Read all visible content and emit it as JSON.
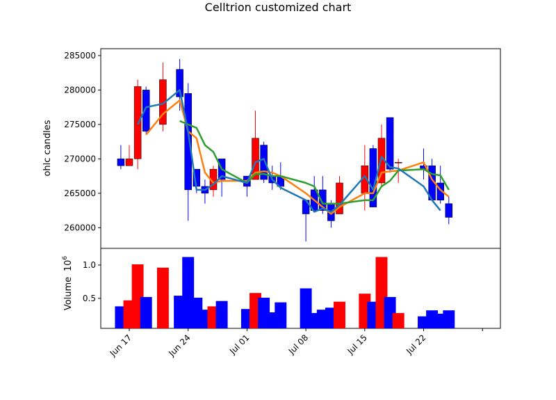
{
  "chart_data": {
    "type": "candlestick",
    "title": "Celltrion customized chart",
    "price_panel": {
      "ylabel": "ohlc candles",
      "ylim": [
        257000,
        286000
      ],
      "yticks": [
        260000,
        265000,
        270000,
        275000,
        280000,
        285000
      ],
      "ytick_labels": [
        "260000",
        "265000",
        "270000",
        "275000",
        "280000",
        "285000"
      ]
    },
    "volume_panel": {
      "ylabel": "Volume",
      "ylabel_exponent": "10^6",
      "ylim": [
        0.05,
        1.25
      ],
      "yticks": [
        0.5,
        1.0
      ],
      "ytick_labels": [
        "0.5",
        "1.0"
      ]
    },
    "x": {
      "start_date": "2019-06-17",
      "tick_labels": [
        "Jun 17",
        "Jun 24",
        "Jul 01",
        "Jul 08",
        "Jul 15",
        "Jul 22",
        ""
      ],
      "tick_dates": [
        "2019-06-17",
        "2019-06-24",
        "2019-07-01",
        "2019-07-08",
        "2019-07-15",
        "2019-07-22",
        "2019-07-29"
      ]
    },
    "colors": {
      "up": "#ff0000",
      "down": "#0000ff",
      "ma5": "#ff7f0e",
      "ma10": "#2ca02c",
      "ma3": "#1f77b4"
    },
    "candles": [
      {
        "date": "2019-06-16",
        "open": 270000,
        "high": 272000,
        "low": 268500,
        "close": 269000,
        "volume": 0.38
      },
      {
        "date": "2019-06-17",
        "open": 269000,
        "high": 272000,
        "low": 269000,
        "close": 270000,
        "volume": 0.47
      },
      {
        "date": "2019-06-18",
        "open": 270000,
        "high": 281500,
        "low": 268500,
        "close": 280500,
        "volume": 1.01
      },
      {
        "date": "2019-06-19",
        "open": 280000,
        "high": 280500,
        "low": 273500,
        "close": 274000,
        "volume": 0.52
      },
      {
        "date": "2019-06-21",
        "open": 275000,
        "high": 284000,
        "low": 274000,
        "close": 281500,
        "volume": 0.96
      },
      {
        "date": "2019-06-23",
        "open": 283000,
        "high": 284500,
        "low": 277000,
        "close": 279000,
        "volume": 0.54
      },
      {
        "date": "2019-06-24",
        "open": 279500,
        "high": 281000,
        "low": 261000,
        "close": 265500,
        "volume": 1.12
      },
      {
        "date": "2019-06-25",
        "open": 268500,
        "high": 268500,
        "low": 265000,
        "close": 266000,
        "volume": 0.51
      },
      {
        "date": "2019-06-26",
        "open": 266000,
        "high": 267000,
        "low": 263500,
        "close": 265000,
        "volume": 0.33
      },
      {
        "date": "2019-06-27",
        "open": 265500,
        "high": 269000,
        "low": 264500,
        "close": 268500,
        "volume": 0.38
      },
      {
        "date": "2019-06-28",
        "open": 270000,
        "high": 270000,
        "low": 264500,
        "close": 267000,
        "volume": 0.46
      },
      {
        "date": "2019-07-01",
        "open": 267500,
        "high": 267500,
        "low": 264500,
        "close": 266000,
        "volume": 0.34
      },
      {
        "date": "2019-07-02",
        "open": 267000,
        "high": 277000,
        "low": 267000,
        "close": 273000,
        "volume": 0.58
      },
      {
        "date": "2019-07-03",
        "open": 272000,
        "high": 272500,
        "low": 266500,
        "close": 267000,
        "volume": 0.51
      },
      {
        "date": "2019-07-04",
        "open": 267500,
        "high": 269000,
        "low": 265500,
        "close": 266500,
        "volume": 0.29
      },
      {
        "date": "2019-07-05",
        "open": 267500,
        "high": 269500,
        "low": 265500,
        "close": 266000,
        "volume": 0.44
      },
      {
        "date": "2019-07-08",
        "open": 264000,
        "high": 264000,
        "low": 258000,
        "close": 262000,
        "volume": 0.65
      },
      {
        "date": "2019-07-09",
        "open": 265500,
        "high": 267500,
        "low": 262500,
        "close": 262500,
        "volume": 0.28
      },
      {
        "date": "2019-07-10",
        "open": 265500,
        "high": 267500,
        "low": 262000,
        "close": 262500,
        "volume": 0.33
      },
      {
        "date": "2019-07-11",
        "open": 263500,
        "high": 264000,
        "low": 260000,
        "close": 261000,
        "volume": 0.36
      },
      {
        "date": "2019-07-12",
        "open": 262000,
        "high": 267500,
        "low": 262000,
        "close": 266500,
        "volume": 0.45
      },
      {
        "date": "2019-07-15",
        "open": 265000,
        "high": 272000,
        "low": 262500,
        "close": 269000,
        "volume": 0.57
      },
      {
        "date": "2019-07-16",
        "open": 271500,
        "high": 272000,
        "low": 263000,
        "close": 263000,
        "volume": 0.45
      },
      {
        "date": "2019-07-17",
        "open": 266500,
        "high": 275000,
        "low": 266000,
        "close": 273000,
        "volume": 1.12
      },
      {
        "date": "2019-07-18",
        "open": 276000,
        "high": 276000,
        "low": 268000,
        "close": 268500,
        "volume": 0.52
      },
      {
        "date": "2019-07-19",
        "open": 269500,
        "high": 270000,
        "low": 266500,
        "close": 269500,
        "volume": 0.28
      },
      {
        "date": "2019-07-22",
        "open": 269000,
        "high": 271500,
        "low": 267000,
        "close": 268500,
        "volume": 0.23
      },
      {
        "date": "2019-07-23",
        "open": 269000,
        "high": 270000,
        "low": 264000,
        "close": 264000,
        "volume": 0.32
      },
      {
        "date": "2019-07-24",
        "open": 266500,
        "high": 269000,
        "low": 263500,
        "close": 264000,
        "volume": 0.27
      },
      {
        "date": "2019-07-25",
        "open": 263500,
        "high": 264500,
        "low": 260500,
        "close": 261500,
        "volume": 0.32
      }
    ],
    "moving_averages": [
      {
        "color": "#ff7f0e",
        "start_index": 3,
        "values": [
          273500,
          276500,
          278500,
          274000,
          273000,
          268000,
          266500,
          266800,
          266800,
          268000,
          268200,
          268000,
          267500,
          265000,
          264000,
          263000,
          262000,
          263000,
          265000,
          265000,
          268000,
          268200,
          268300,
          269500,
          267000,
          265500,
          264500
        ]
      },
      {
        "color": "#2ca02c",
        "start_index": 5,
        "values": [
          275500,
          275000,
          274500,
          272000,
          271000,
          268500,
          266500,
          267800,
          267800,
          267500,
          267500,
          266500,
          266000,
          263500,
          263500,
          263500,
          264000,
          264000,
          266000,
          266800,
          268300,
          268500,
          267800,
          267600,
          265500
        ]
      },
      {
        "color": "#1f77b4",
        "start_index": 2,
        "values": [
          275000,
          277500,
          278000,
          280000,
          274000,
          265500,
          265500,
          266300,
          267500,
          266500,
          269500,
          270000,
          267000,
          265800,
          264000,
          262300,
          262800,
          262300,
          263300,
          267500,
          265500,
          270300,
          268800,
          268600,
          266000,
          264000,
          262500
        ]
      }
    ]
  }
}
